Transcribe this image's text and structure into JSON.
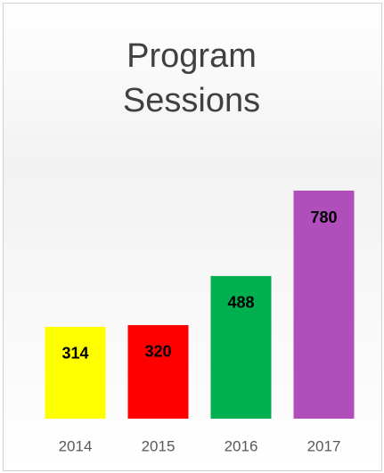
{
  "chart_data": {
    "type": "bar",
    "title": "Program Sessions",
    "categories": [
      "2014",
      "2015",
      "2016",
      "2017"
    ],
    "values": [
      314,
      320,
      488,
      780
    ],
    "colors": [
      "#ffff00",
      "#ff0000",
      "#00b050",
      "#b04fbb"
    ]
  }
}
